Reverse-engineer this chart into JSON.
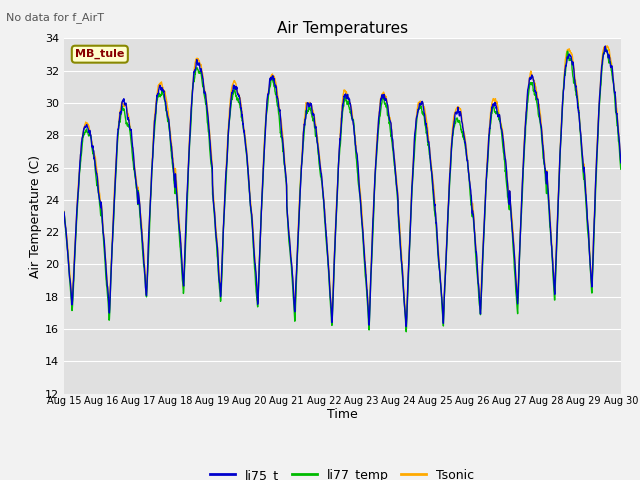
{
  "title": "Air Temperatures",
  "suptitle": "No data for f_AirT",
  "xlabel": "Time",
  "ylabel": "Air Temperature (C)",
  "ylim": [
    12,
    34
  ],
  "annotation": "MB_tule",
  "x_start": 15,
  "x_end": 30,
  "x_ticks": [
    15,
    16,
    17,
    18,
    19,
    20,
    21,
    22,
    23,
    24,
    25,
    26,
    27,
    28,
    29,
    30
  ],
  "x_tick_labels": [
    "Aug 15",
    "Aug 16",
    "Aug 17",
    "Aug 18",
    "Aug 19",
    "Aug 20",
    "Aug 21",
    "Aug 22",
    "Aug 23",
    "Aug 24",
    "Aug 25",
    "Aug 26",
    "Aug 27",
    "Aug 28",
    "Aug 29",
    "Aug 30"
  ],
  "colors": {
    "li75_t": "#0000cc",
    "li77_temp": "#00bb00",
    "Tsonic": "#ffaa00"
  },
  "plot_bg": "#e0e0e0",
  "grid_color": "#ffffff",
  "fig_bg": "#f2f2f2",
  "legend_labels": [
    "li75_t",
    "li77_temp",
    "Tsonic"
  ],
  "y_ticks": [
    12,
    14,
    16,
    18,
    20,
    22,
    24,
    26,
    28,
    30,
    32,
    34
  ]
}
